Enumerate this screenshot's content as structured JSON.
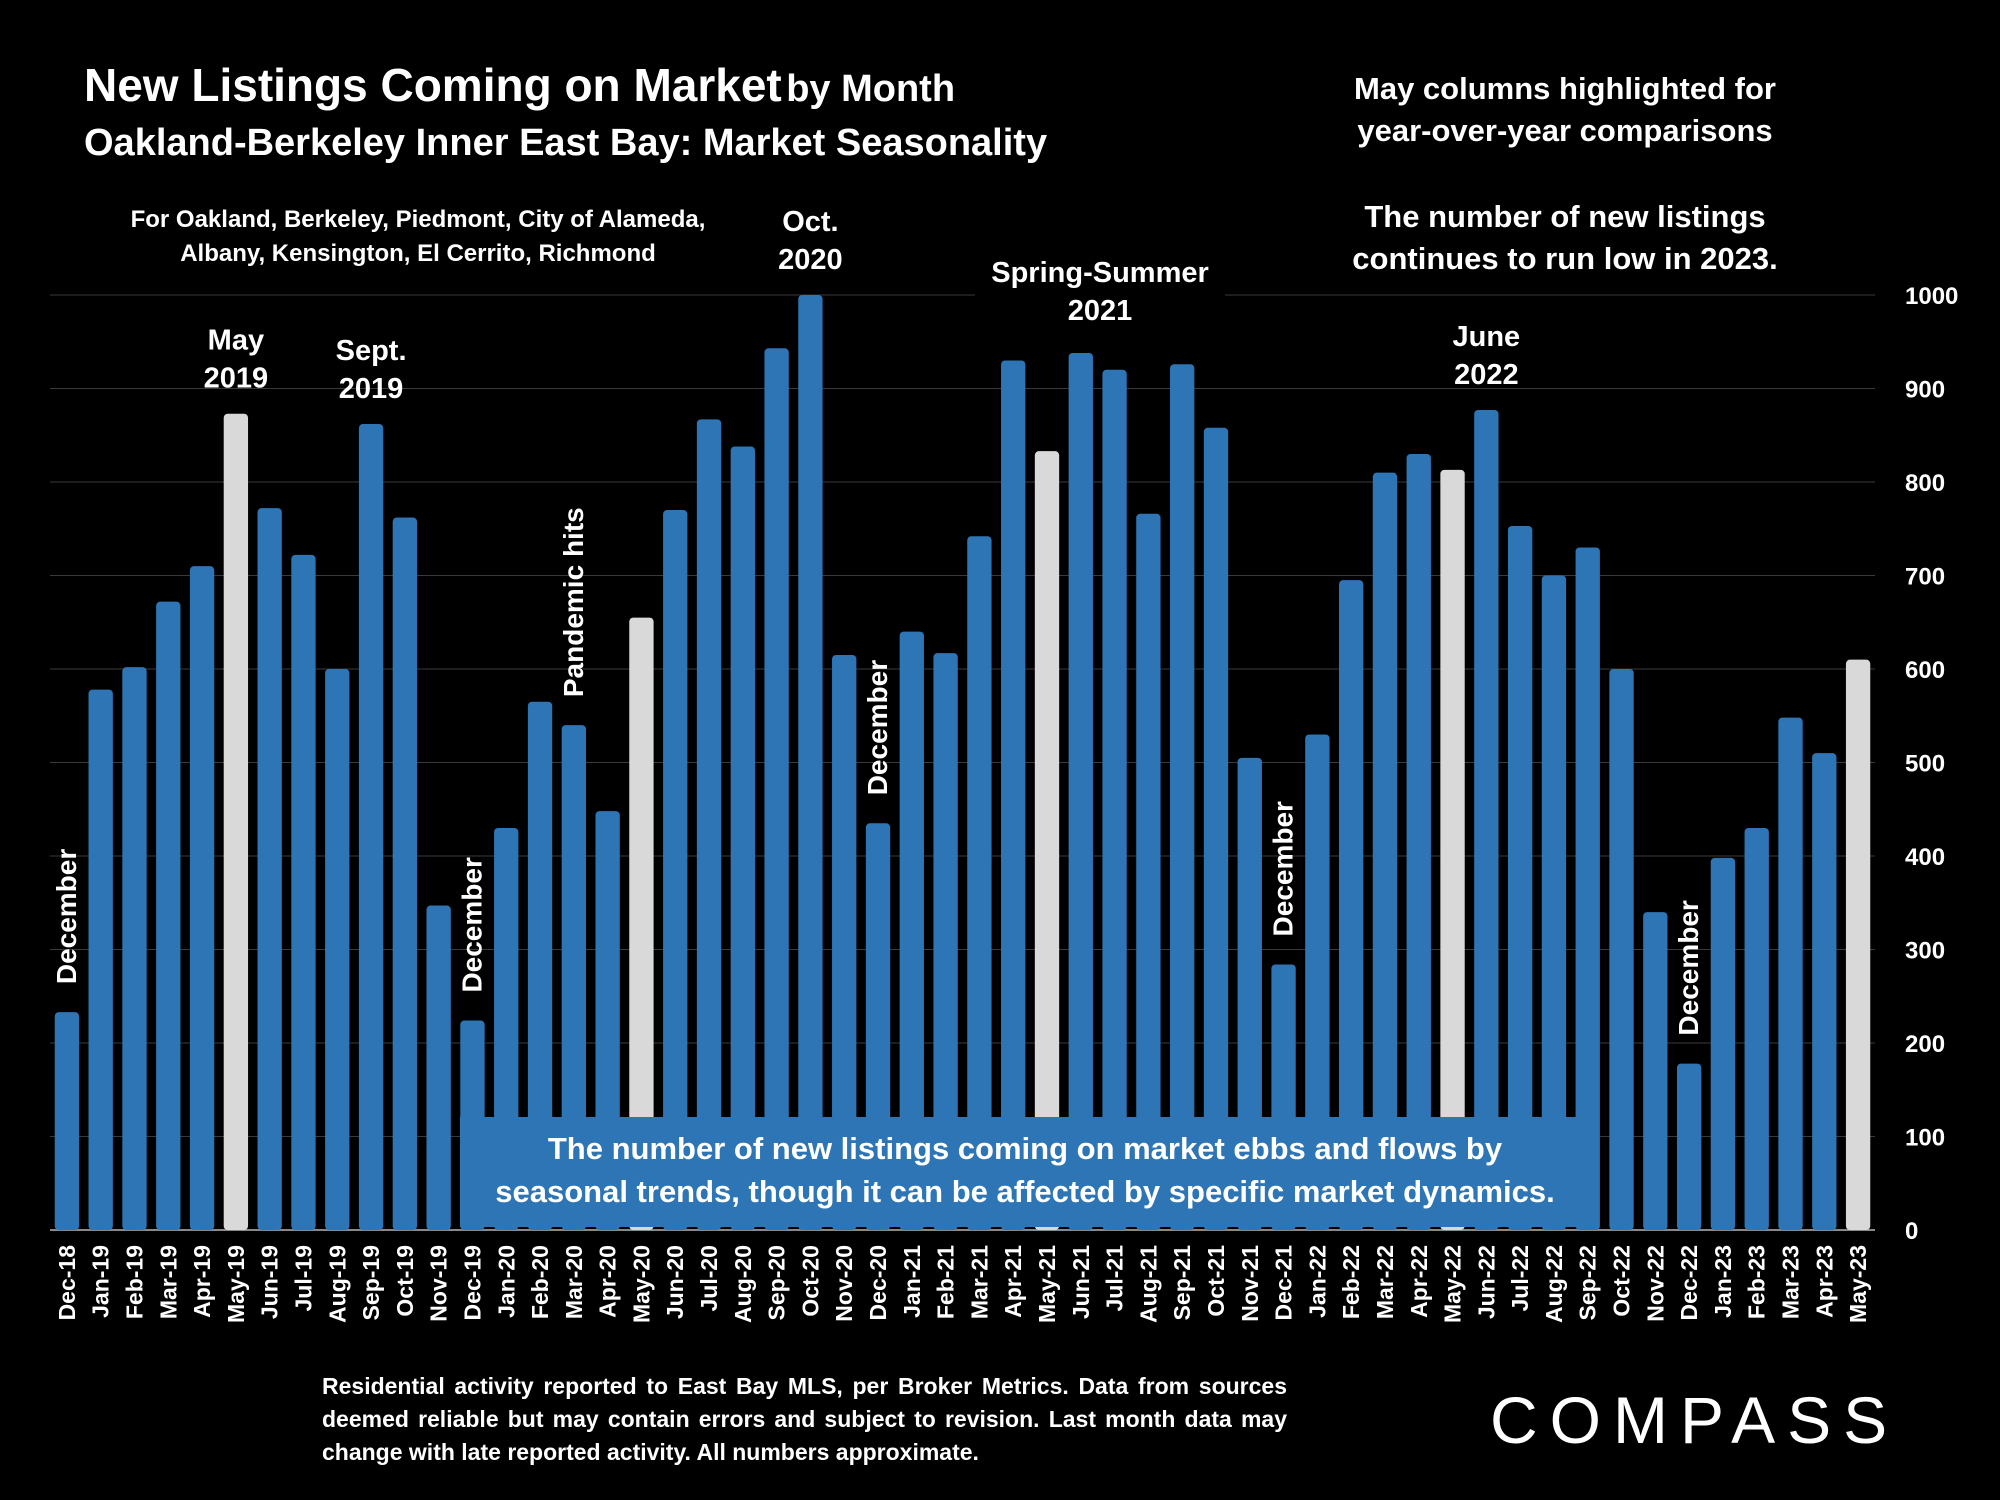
{
  "header": {
    "title_main": "New Listings Coming on Market",
    "title_suffix": "by Month",
    "title_line2": "Oakland-Berkeley Inner East Bay: Market Seasonality",
    "cities_line1": "For Oakland, Berkeley, Piedmont, City of Alameda,",
    "cities_line2": "Albany, Kensington, El Cerrito, Richmond"
  },
  "notes": {
    "may_line1": "May columns highlighted for",
    "may_line2": "year-over-year comparisons",
    "low_line1": "The number of new listings",
    "low_line2": "continues to run low in 2023."
  },
  "callout": {
    "line1": "The number of new listings coming on market ebbs and flows by",
    "line2": "seasonal trends, though it can be affected by specific market dynamics."
  },
  "source": {
    "text": "Residential activity reported to East Bay MLS, per Broker Metrics. Data from sources deemed reliable but may contain errors and subject to revision. Last month data may change with late reported activity. All numbers approximate."
  },
  "logo": {
    "text": "COMPASS"
  },
  "colors": {
    "bar": "#2e75b6",
    "highlight": "#d9d9d9",
    "background": "#000000",
    "grid": "#3a3a3a"
  },
  "chart_data": {
    "type": "bar",
    "categories": [
      "Dec-18",
      "Jan-19",
      "Feb-19",
      "Mar-19",
      "Apr-19",
      "May-19",
      "Jun-19",
      "Jul-19",
      "Aug-19",
      "Sep-19",
      "Oct-19",
      "Nov-19",
      "Dec-19",
      "Jan-20",
      "Feb-20",
      "Mar-20",
      "Apr-20",
      "May-20",
      "Jun-20",
      "Jul-20",
      "Aug-20",
      "Sep-20",
      "Oct-20",
      "Nov-20",
      "Dec-20",
      "Jan-21",
      "Feb-21",
      "Mar-21",
      "Apr-21",
      "May-21",
      "Jun-21",
      "Jul-21",
      "Aug-21",
      "Sep-21",
      "Oct-21",
      "Nov-21",
      "Dec-21",
      "Jan-22",
      "Feb-22",
      "Mar-22",
      "Apr-22",
      "May-22",
      "Jun-22",
      "Jul-22",
      "Aug-22",
      "Sep-22",
      "Oct-22",
      "Nov-22",
      "Dec-22",
      "Jan-23",
      "Feb-23",
      "Mar-23",
      "Apr-23",
      "May-23"
    ],
    "values": [
      233,
      578,
      602,
      672,
      710,
      873,
      772,
      722,
      600,
      862,
      762,
      347,
      224,
      430,
      565,
      540,
      448,
      655,
      770,
      867,
      838,
      943,
      1000,
      615,
      435,
      640,
      617,
      742,
      930,
      833,
      938,
      920,
      766,
      926,
      858,
      505,
      284,
      530,
      695,
      810,
      830,
      813,
      877,
      753,
      700,
      730,
      600,
      340,
      178,
      398,
      430,
      548,
      510,
      610
    ],
    "highlighted": [
      "May-19",
      "May-20",
      "May-21",
      "May-22",
      "May-23"
    ],
    "y_ticks": [
      "0",
      "100",
      "200",
      "300",
      "400",
      "500",
      "600",
      "700",
      "800",
      "900",
      "1000"
    ],
    "ylim": [
      0,
      1000
    ],
    "y_axis_side": "right",
    "grid": true,
    "annotations": [
      {
        "category": "Dec-18",
        "lines": [
          "December"
        ],
        "style": "vertical"
      },
      {
        "category": "May-19",
        "lines": [
          "May",
          "2019"
        ],
        "style": "above"
      },
      {
        "category": "Sep-19",
        "lines": [
          "Sept.",
          "2019"
        ],
        "style": "above"
      },
      {
        "category": "Dec-19",
        "lines": [
          "December"
        ],
        "style": "vertical"
      },
      {
        "category": "Mar-20",
        "lines": [
          "Pandemic hits"
        ],
        "style": "vertical"
      },
      {
        "category": "Oct-20",
        "lines": [
          "Oct.",
          "2020"
        ],
        "style": "above"
      },
      {
        "category": "Dec-20",
        "lines": [
          "December"
        ],
        "style": "vertical"
      },
      {
        "category": "Spring-Summer 2021",
        "lines": [
          "Spring-Summer",
          "2021"
        ],
        "style": "above"
      },
      {
        "category": "Dec-21",
        "lines": [
          "December"
        ],
        "style": "vertical"
      },
      {
        "category": "Jun-22",
        "lines": [
          "June",
          "2022"
        ],
        "style": "above"
      },
      {
        "category": "Dec-22",
        "lines": [
          "December"
        ],
        "style": "vertical"
      }
    ]
  }
}
